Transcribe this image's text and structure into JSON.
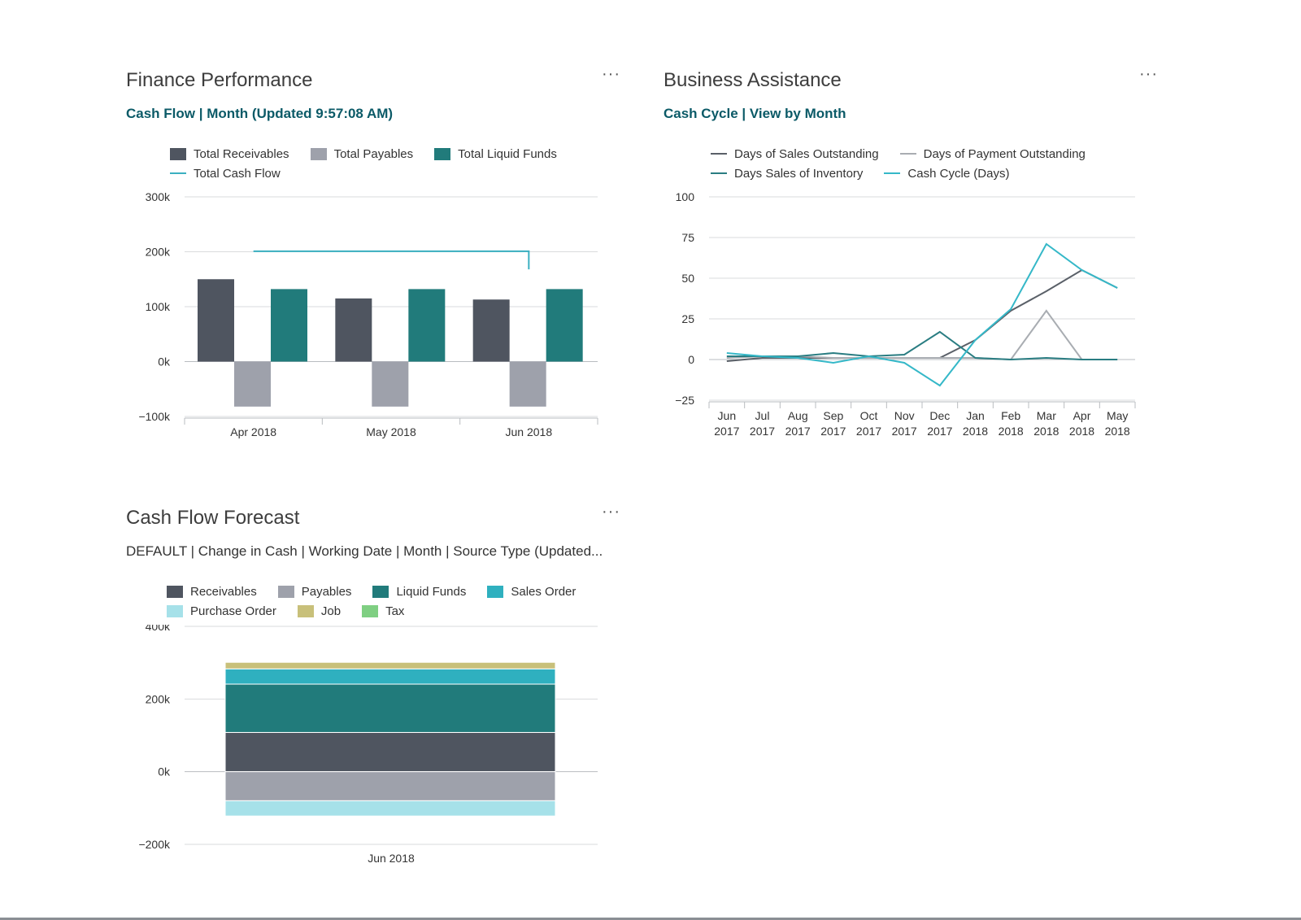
{
  "finance": {
    "title": "Finance Performance",
    "subtitle": "Cash Flow | Month (Updated 9:57:08 AM)",
    "menu": "···"
  },
  "business": {
    "title": "Business Assistance",
    "subtitle": "Cash Cycle | View by Month",
    "menu": "···"
  },
  "forecast": {
    "title": "Cash Flow Forecast",
    "subtitle": "DEFAULT | Change in Cash | Working Date | Month | Source Type (Updated...",
    "menu": "···"
  },
  "colors": {
    "receivables": "#4f5560",
    "payables": "#9ea1ab",
    "liquid_funds": "#217b7b",
    "cash_flow": "#3bb0c1",
    "sales_order": "#2fb0bf",
    "purchase_order": "#a6e1e9",
    "job": "#c8c07a",
    "tax": "#7fcf82",
    "days_sales_outstanding": "#5a6068",
    "days_payment_outstanding": "#a9adb2",
    "days_sales_inventory": "#2a7d82",
    "cash_cycle": "#35b8c8"
  },
  "chart_data": [
    {
      "id": "cash-flow",
      "type": "bar",
      "categories": [
        "Apr 2018",
        "May 2018",
        "Jun 2018"
      ],
      "series": [
        {
          "name": "Total Receivables",
          "values": [
            150000,
            115000,
            113000
          ],
          "color_key": "receivables"
        },
        {
          "name": "Total Payables",
          "values": [
            -82000,
            -82000,
            -82000
          ],
          "color_key": "payables"
        },
        {
          "name": "Total Liquid Funds",
          "values": [
            132000,
            132000,
            132000
          ],
          "color_key": "liquid_funds"
        }
      ],
      "line_series": [
        {
          "name": "Total Cash Flow",
          "values": [
            201000,
            201000,
            168000
          ],
          "color_key": "cash_flow"
        }
      ],
      "y_ticks": [
        "300k",
        "200k",
        "100k",
        "0k",
        "−100k"
      ],
      "ylim": [
        -100000,
        300000
      ],
      "legend_position": "top"
    },
    {
      "id": "cash-cycle",
      "type": "line",
      "categories": [
        [
          "Jun",
          "2017"
        ],
        [
          "Jul",
          "2017"
        ],
        [
          "Aug",
          "2017"
        ],
        [
          "Sep",
          "2017"
        ],
        [
          "Oct",
          "2017"
        ],
        [
          "Nov",
          "2017"
        ],
        [
          "Dec",
          "2017"
        ],
        [
          "Jan",
          "2018"
        ],
        [
          "Feb",
          "2018"
        ],
        [
          "Mar",
          "2018"
        ],
        [
          "Apr",
          "2018"
        ],
        [
          "May",
          "2018"
        ]
      ],
      "series": [
        {
          "name": "Days of Sales Outstanding",
          "values": [
            -1,
            1,
            1,
            1,
            1,
            1,
            1,
            12,
            30,
            42,
            55,
            44
          ],
          "color_key": "days_sales_outstanding"
        },
        {
          "name": "Days of Payment Outstanding",
          "values": [
            1,
            2,
            2,
            1,
            1,
            1,
            1,
            1,
            0,
            30,
            0,
            0
          ],
          "color_key": "days_payment_outstanding"
        },
        {
          "name": "Days Sales of Inventory",
          "values": [
            2,
            2,
            2,
            4,
            2,
            3,
            17,
            1,
            0,
            1,
            0,
            0
          ],
          "color_key": "days_sales_inventory"
        },
        {
          "name": "Cash Cycle (Days)",
          "values": [
            4,
            2,
            1,
            -2,
            2,
            -2,
            -16,
            12,
            31,
            71,
            55,
            44
          ],
          "color_key": "cash_cycle"
        }
      ],
      "y_ticks": [
        "100",
        "75",
        "50",
        "25",
        "0",
        "−25"
      ],
      "ylim": [
        -25,
        100
      ],
      "legend_position": "top"
    },
    {
      "id": "cash-flow-forecast",
      "type": "bar",
      "stacked": true,
      "categories": [
        "Jun 2018"
      ],
      "series": [
        {
          "name": "Receivables",
          "values": [
            108000
          ],
          "color_key": "receivables"
        },
        {
          "name": "Payables",
          "values": [
            -80000
          ],
          "color_key": "payables"
        },
        {
          "name": "Liquid Funds",
          "values": [
            133000
          ],
          "color_key": "liquid_funds"
        },
        {
          "name": "Sales Order",
          "values": [
            42000
          ],
          "color_key": "sales_order"
        },
        {
          "name": "Purchase Order",
          "values": [
            -42000
          ],
          "color_key": "purchase_order"
        },
        {
          "name": "Job",
          "values": [
            18000
          ],
          "color_key": "job"
        },
        {
          "name": "Tax",
          "values": [
            0
          ],
          "color_key": "tax"
        }
      ],
      "y_ticks": [
        "400k",
        "200k",
        "0k",
        "−200k"
      ],
      "ylim": [
        -200000,
        400000
      ],
      "legend_position": "top"
    }
  ]
}
